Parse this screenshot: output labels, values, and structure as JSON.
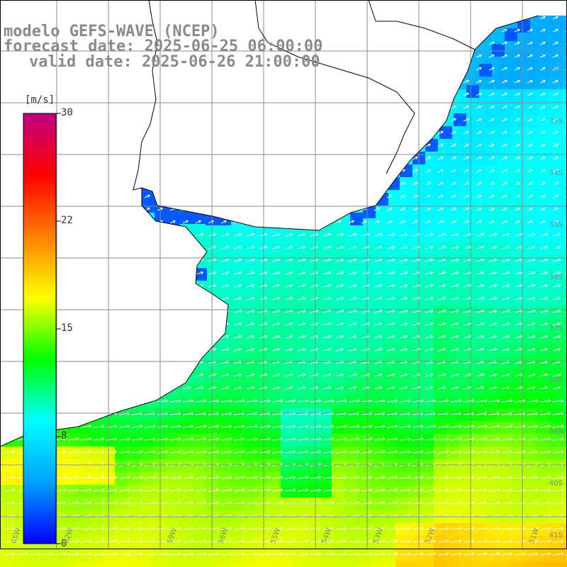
{
  "title": {
    "line1": "modelo GEFS-WAVE (NCEP)",
    "line2": "forecast date: 2025-06-25 06:00:00",
    "line3": "valid date: 2025-06-26 21:00:00"
  },
  "colorbar": {
    "unit": "[m/s]",
    "min": 0,
    "max": 30,
    "ticks": [
      "30",
      "22",
      "15",
      "8",
      "0"
    ],
    "tick_values": [
      30,
      22,
      15,
      8,
      0
    ],
    "colors": [
      "#0000ff",
      "#00a0ff",
      "#00ffff",
      "#00ff00",
      "#ffff00",
      "#ff8000",
      "#ff0000",
      "#c00080"
    ]
  },
  "axes": {
    "lat_labels": [
      "33S",
      "34S",
      "35S",
      "36S",
      "37S",
      "38S",
      "39S",
      "40S",
      "41S"
    ],
    "lon_labels": [
      "65W",
      "62W",
      "59W",
      "56W",
      "55W",
      "54W",
      "53W",
      "52W",
      "51W"
    ]
  },
  "map_colors": {
    "land": "#ffffff",
    "grid": "#8a8a8a",
    "coast": "#000000",
    "arrow": "#ffffff"
  }
}
